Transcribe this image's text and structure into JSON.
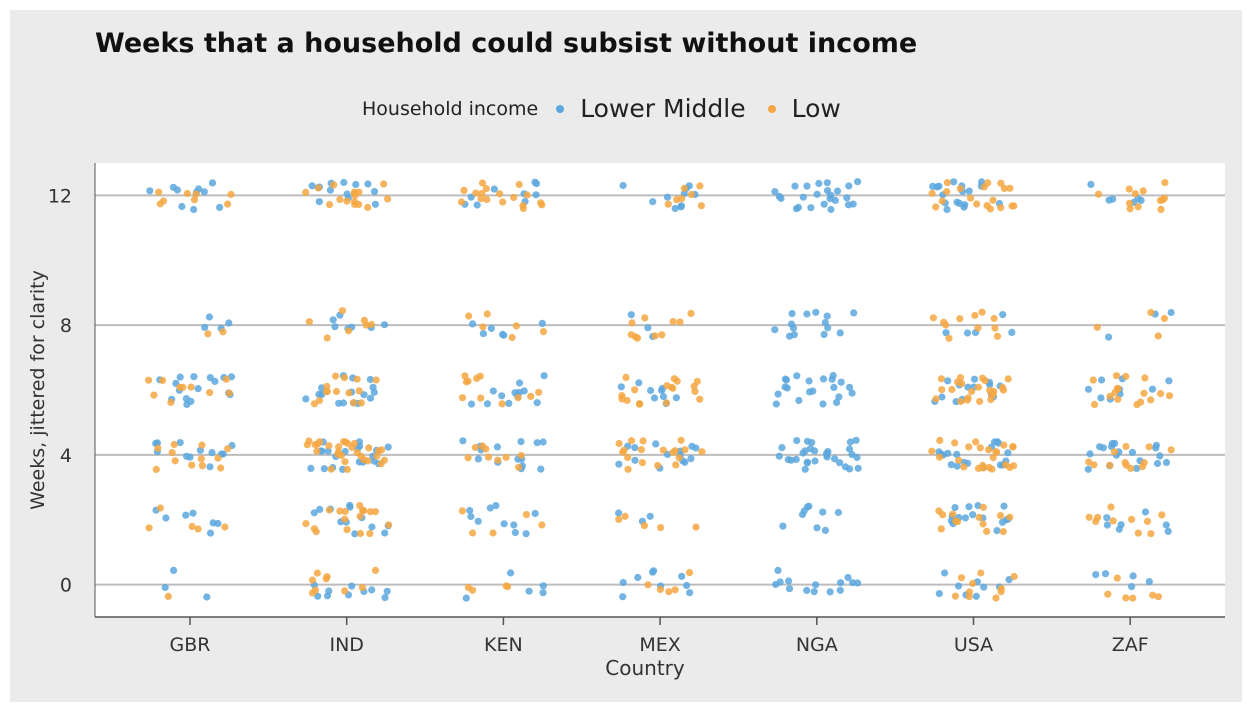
{
  "chart_data": {
    "type": "scatter",
    "title": "Weeks that a household could subsist without income",
    "xlabel": "Country",
    "ylabel": "Weeks, jittered for clarity",
    "categories": [
      "GBR",
      "IND",
      "KEN",
      "MEX",
      "NGA",
      "USA",
      "ZAF"
    ],
    "ylim": [
      -1,
      13
    ],
    "yticks": [
      0,
      4,
      8,
      12
    ],
    "grid": true,
    "legend": {
      "title": "Household income",
      "placement": "top"
    },
    "series": [
      {
        "name": "Lower Middle",
        "color": "#5ca7de",
        "points_per_category": [
          52,
          78,
          56,
          48,
          112,
          78,
          48
        ]
      },
      {
        "name": "Low",
        "color": "#f5a742",
        "points_per_category": [
          38,
          92,
          52,
          62,
          0,
          100,
          60
        ]
      }
    ],
    "value_distribution_weights": [
      {
        "weeks": 12,
        "share": 0.2
      },
      {
        "weeks": 8,
        "share": 0.1
      },
      {
        "weeks": 6,
        "share": 0.2
      },
      {
        "weeks": 4,
        "share": 0.25
      },
      {
        "weeks": 2,
        "share": 0.15
      },
      {
        "weeks": 0,
        "share": 0.1
      }
    ]
  }
}
